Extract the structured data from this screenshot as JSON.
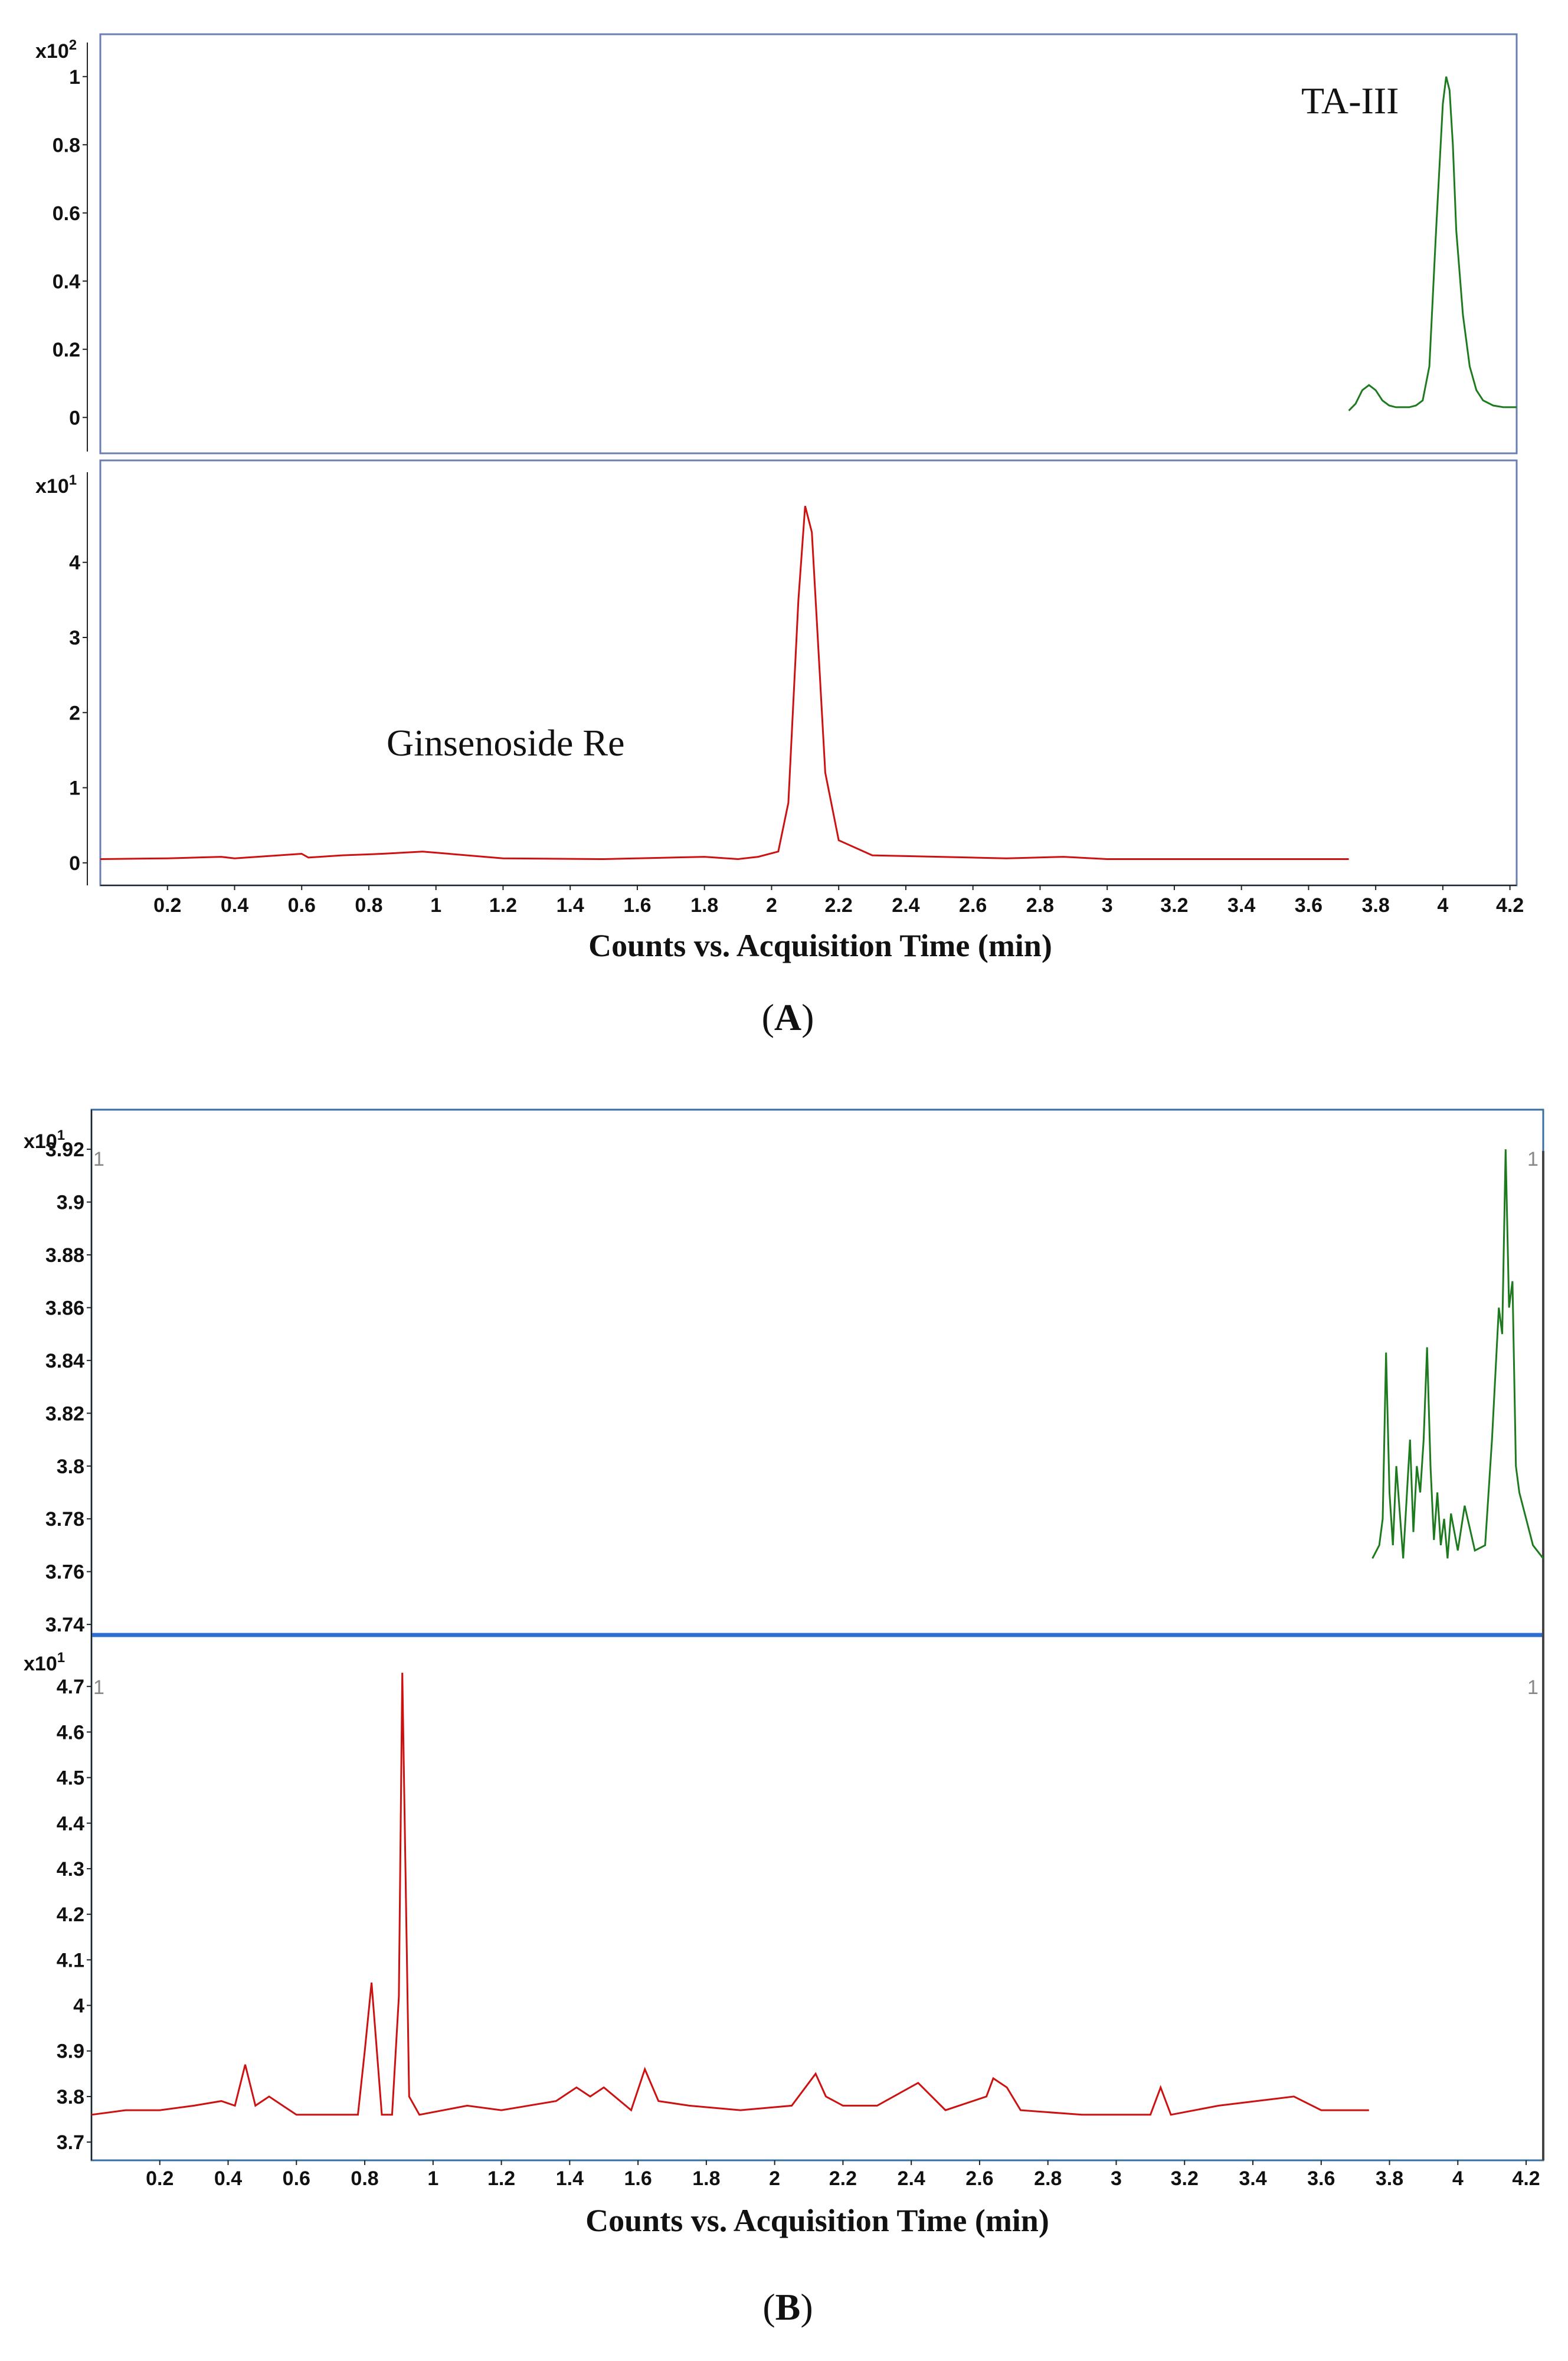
{
  "chart_data": [
    {
      "type": "line",
      "panel": "A",
      "caption": "(A)",
      "xlabel": "Counts vs. Acquisition Time (min)",
      "xlim": [
        0,
        4.22
      ],
      "x_ticks": [
        "0.2",
        "0.4",
        "0.6",
        "0.8",
        "1",
        "1.2",
        "1.4",
        "1.6",
        "1.8",
        "2",
        "2.2",
        "2.4",
        "2.6",
        "2.8",
        "3",
        "3.2",
        "3.4",
        "3.6",
        "3.8",
        "4",
        "4.2"
      ],
      "subplots": [
        {
          "name": "TA-III trace",
          "multiplier_label": "x10",
          "multiplier_exp": "2",
          "annotation": "TA-III",
          "ylim": [
            -0.1,
            1.1
          ],
          "y_ticks": [
            "0",
            "0.2",
            "0.4",
            "0.6",
            "0.8",
            "1"
          ],
          "color": "#1e7a1e",
          "x": [
            3.72,
            3.74,
            3.76,
            3.78,
            3.8,
            3.82,
            3.84,
            3.86,
            3.88,
            3.9,
            3.92,
            3.94,
            3.96,
            3.98,
            4.0,
            4.01,
            4.02,
            4.03,
            4.04,
            4.06,
            4.08,
            4.1,
            4.12,
            4.15,
            4.18,
            4.22
          ],
          "y": [
            0.02,
            0.04,
            0.08,
            0.095,
            0.08,
            0.05,
            0.035,
            0.03,
            0.03,
            0.03,
            0.035,
            0.05,
            0.15,
            0.55,
            0.92,
            1.0,
            0.96,
            0.8,
            0.55,
            0.3,
            0.15,
            0.08,
            0.05,
            0.035,
            0.03,
            0.03
          ]
        },
        {
          "name": "Ginsenoside Re trace",
          "multiplier_label": "x10",
          "multiplier_exp": "1",
          "annotation": "Ginsenoside Re",
          "ylim": [
            -0.3,
            5.2
          ],
          "y_ticks": [
            "0",
            "1",
            "2",
            "3",
            "4"
          ],
          "color": "#cc1111",
          "x": [
            0.0,
            0.2,
            0.36,
            0.4,
            0.6,
            0.62,
            0.72,
            0.84,
            0.96,
            1.2,
            1.5,
            1.8,
            1.9,
            1.96,
            2.02,
            2.05,
            2.08,
            2.1,
            2.12,
            2.14,
            2.16,
            2.2,
            2.3,
            2.5,
            2.7,
            2.87,
            3.0,
            3.2,
            3.5,
            3.72
          ],
          "y": [
            0.05,
            0.06,
            0.08,
            0.06,
            0.12,
            0.07,
            0.1,
            0.12,
            0.15,
            0.06,
            0.05,
            0.08,
            0.05,
            0.08,
            0.15,
            0.8,
            3.5,
            4.75,
            4.4,
            2.8,
            1.2,
            0.3,
            0.1,
            0.08,
            0.06,
            0.08,
            0.05,
            0.05,
            0.05,
            0.05
          ]
        }
      ]
    },
    {
      "type": "line",
      "panel": "B",
      "caption": "(B)",
      "xlabel": "Counts vs. Acquisition Time (min)",
      "xlim": [
        0,
        4.25
      ],
      "x_ticks": [
        "0.2",
        "0.4",
        "0.6",
        "0.8",
        "1",
        "1.2",
        "1.4",
        "1.6",
        "1.8",
        "2",
        "2.2",
        "2.4",
        "2.6",
        "2.8",
        "3",
        "3.2",
        "3.4",
        "3.6",
        "3.8",
        "4",
        "4.2"
      ],
      "subplots": [
        {
          "name": "TA-III trace",
          "multiplier_label": "x10",
          "multiplier_exp": "1",
          "corner_marker": "1",
          "ylim": [
            3.736,
            3.935
          ],
          "y_ticks": [
            "3.74",
            "3.76",
            "3.78",
            "3.8",
            "3.82",
            "3.84",
            "3.86",
            "3.88",
            "3.9",
            "3.92"
          ],
          "color": "#1e7a1e",
          "x": [
            3.75,
            3.77,
            3.78,
            3.79,
            3.8,
            3.81,
            3.82,
            3.84,
            3.86,
            3.87,
            3.88,
            3.89,
            3.9,
            3.91,
            3.92,
            3.93,
            3.94,
            3.95,
            3.96,
            3.97,
            3.98,
            4.0,
            4.02,
            4.05,
            4.08,
            4.1,
            4.12,
            4.13,
            4.14,
            4.15,
            4.16,
            4.17,
            4.18,
            4.2,
            4.22,
            4.25
          ],
          "y": [
            3.765,
            3.77,
            3.78,
            3.843,
            3.79,
            3.77,
            3.8,
            3.765,
            3.81,
            3.775,
            3.8,
            3.79,
            3.81,
            3.845,
            3.8,
            3.772,
            3.79,
            3.77,
            3.78,
            3.765,
            3.782,
            3.768,
            3.785,
            3.768,
            3.77,
            3.81,
            3.86,
            3.85,
            3.92,
            3.86,
            3.87,
            3.8,
            3.79,
            3.78,
            3.77,
            3.765
          ]
        },
        {
          "name": "Ginsenoside Re trace",
          "multiplier_label": "x10",
          "multiplier_exp": "1",
          "corner_marker": "1",
          "ylim": [
            3.66,
            4.8
          ],
          "y_ticks": [
            "3.7",
            "3.8",
            "3.9",
            "4",
            "4.1",
            "4.2",
            "4.3",
            "4.4",
            "4.5",
            "4.6",
            "4.7"
          ],
          "color": "#cc1111",
          "x": [
            0.0,
            0.1,
            0.2,
            0.3,
            0.38,
            0.42,
            0.45,
            0.48,
            0.52,
            0.56,
            0.6,
            0.7,
            0.78,
            0.8,
            0.82,
            0.85,
            0.88,
            0.9,
            0.91,
            0.93,
            0.96,
            1.1,
            1.2,
            1.36,
            1.42,
            1.46,
            1.5,
            1.58,
            1.62,
            1.66,
            1.75,
            1.9,
            2.05,
            2.1,
            2.12,
            2.15,
            2.2,
            2.3,
            2.42,
            2.5,
            2.62,
            2.64,
            2.68,
            2.72,
            2.9,
            3.1,
            3.13,
            3.16,
            3.3,
            3.52,
            3.6,
            3.74
          ],
          "y": [
            3.76,
            3.77,
            3.77,
            3.78,
            3.79,
            3.78,
            3.87,
            3.78,
            3.8,
            3.78,
            3.76,
            3.76,
            3.76,
            3.9,
            4.05,
            3.76,
            3.76,
            4.02,
            4.73,
            3.8,
            3.76,
            3.78,
            3.77,
            3.79,
            3.82,
            3.8,
            3.82,
            3.77,
            3.86,
            3.79,
            3.78,
            3.77,
            3.78,
            3.83,
            3.85,
            3.8,
            3.78,
            3.78,
            3.83,
            3.77,
            3.8,
            3.84,
            3.82,
            3.77,
            3.76,
            3.76,
            3.82,
            3.76,
            3.78,
            3.8,
            3.77,
            3.77
          ]
        }
      ]
    }
  ]
}
